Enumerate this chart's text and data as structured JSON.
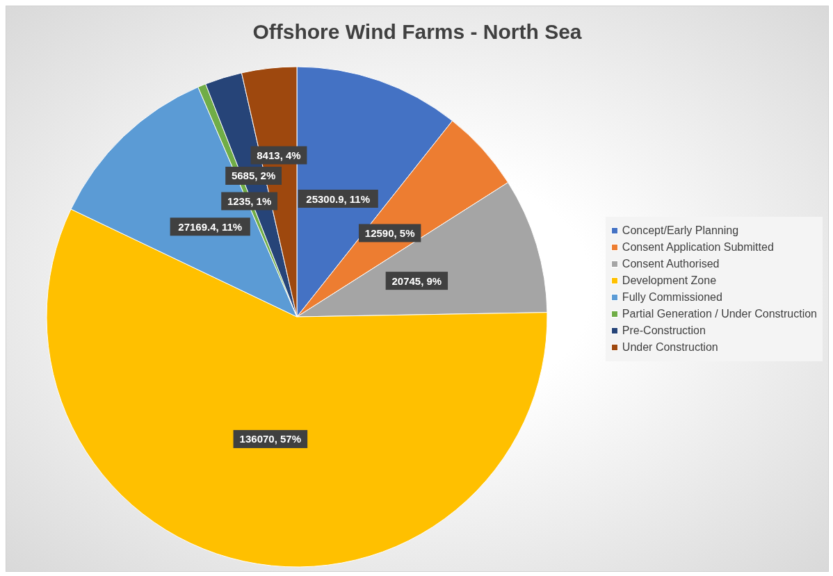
{
  "chart_data": {
    "type": "pie",
    "title": "Offshore Wind Farms - North Sea",
    "categories": [
      "Concept/Early Planning",
      "Consent Application Submitted",
      "Consent Authorised",
      "Development Zone",
      "Fully Commissioned",
      "Partial Generation / Under Construction",
      "Pre-Construction",
      "Under Construction"
    ],
    "values": [
      25300.9,
      12590,
      20745,
      136070,
      27169.4,
      1235,
      5685,
      8413
    ],
    "value_labels": [
      "25300.9, 11%",
      "12590, 5%",
      "20745, 9%",
      "136070, 57%",
      "27169.4, 11%",
      "1235, 1%",
      "5685, 2%",
      "8413, 4%"
    ],
    "colors": [
      "#4472c4",
      "#ed7d31",
      "#a5a5a5",
      "#ffc000",
      "#5b9bd5",
      "#70ad47",
      "#264478",
      "#9e480e"
    ],
    "legend": "right"
  }
}
